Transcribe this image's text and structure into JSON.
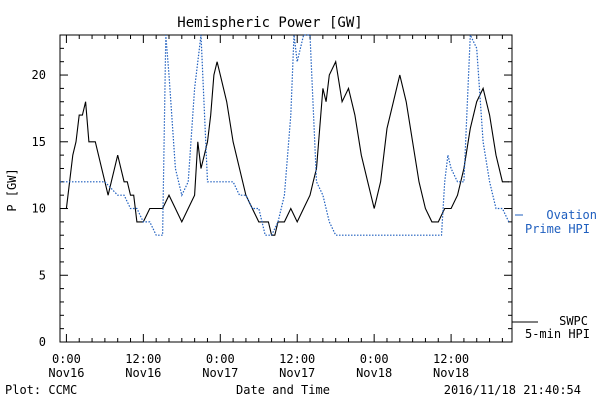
{
  "chart_data": {
    "type": "line",
    "title": "Hemispheric Power [GW]",
    "xlabel": "Date and Time",
    "ylabel": "P [GW]",
    "ylim": [
      0,
      23
    ],
    "yticks": [
      0,
      5,
      10,
      15,
      20
    ],
    "xlim_hours": [
      -1,
      69.5
    ],
    "xtick_labels": [
      {
        "h": 0,
        "time": "0:00",
        "date": "Nov16"
      },
      {
        "h": 12,
        "time": "12:00",
        "date": "Nov16"
      },
      {
        "h": 24,
        "time": "0:00",
        "date": "Nov17"
      },
      {
        "h": 36,
        "time": "12:00",
        "date": "Nov17"
      },
      {
        "h": 48,
        "time": "0:00",
        "date": "Nov18"
      },
      {
        "h": 60,
        "time": "12:00",
        "date": "Nov18"
      }
    ],
    "grid": false,
    "series": [
      {
        "name": "SWPC 5-min HPI",
        "color": "#000000",
        "style": "solid",
        "x": [
          -1,
          0,
          0.5,
          1,
          1.5,
          2,
          2.5,
          3,
          3.5,
          4,
          4.5,
          5,
          5.5,
          6,
          6.5,
          7,
          7.5,
          8,
          8.5,
          9,
          9.5,
          10,
          10.5,
          11,
          12,
          13,
          14,
          15,
          16,
          17,
          18,
          19,
          20,
          20.5,
          21,
          21.5,
          22,
          22.5,
          23,
          23.5,
          24,
          25,
          26,
          27,
          28,
          29,
          30,
          31,
          31.5,
          32,
          32.5,
          33,
          34,
          35,
          36,
          37,
          38,
          38.5,
          39,
          40,
          40.5,
          41,
          42,
          43,
          44,
          45,
          46,
          47,
          48,
          49,
          50,
          51,
          52,
          53,
          54,
          55,
          56,
          57,
          58,
          59,
          60,
          61,
          62,
          63,
          64,
          65,
          66,
          67,
          68,
          69
        ],
        "y": [
          10,
          10,
          12,
          14,
          15,
          17,
          17,
          18,
          15,
          15,
          15,
          14,
          13,
          12,
          11,
          12,
          13,
          14,
          13,
          12,
          12,
          11,
          11,
          9,
          9,
          10,
          10,
          10,
          11,
          10,
          9,
          10,
          11,
          15,
          13,
          14,
          15,
          17,
          20,
          21,
          20,
          18,
          15,
          13,
          11,
          10,
          9,
          9,
          9,
          8,
          8,
          9,
          9,
          10,
          9,
          10,
          11,
          12,
          13,
          19,
          18,
          20,
          21,
          18,
          19,
          17,
          14,
          12,
          10,
          12,
          16,
          18,
          20,
          18,
          15,
          12,
          10,
          9,
          9,
          10,
          10,
          11,
          13,
          16,
          18,
          19,
          17,
          14,
          12,
          12
        ]
      },
      {
        "name": "Ovation Prime HPI",
        "color": "#1f5fbf",
        "style": "dotted",
        "x": [
          -1,
          0,
          2,
          4,
          6,
          8,
          9,
          10,
          11,
          12,
          13,
          14,
          15,
          15.5,
          16,
          17,
          18,
          19,
          20,
          21,
          22,
          23,
          24,
          25,
          26,
          27,
          28,
          29,
          30,
          31,
          32,
          33,
          34,
          35,
          35.5,
          36,
          37,
          38,
          39,
          40,
          41,
          42,
          43,
          44,
          45,
          46,
          47,
          48,
          49,
          50,
          51,
          52,
          53,
          54,
          55,
          56,
          57,
          58,
          58.5,
          59,
          59.5,
          60,
          61,
          62,
          63,
          64,
          65,
          66,
          67,
          68,
          69
        ],
        "y": [
          12,
          12,
          12,
          12,
          12,
          11,
          11,
          10,
          10,
          9,
          9,
          8,
          8,
          23,
          20,
          13,
          11,
          12,
          19,
          23,
          12,
          12,
          12,
          12,
          12,
          11,
          11,
          10,
          10,
          8,
          8,
          9,
          11,
          17,
          23,
          21,
          23,
          23,
          12,
          11,
          9,
          8,
          8,
          8,
          8,
          8,
          8,
          8,
          8,
          8,
          8,
          8,
          8,
          8,
          8,
          8,
          8,
          8,
          8,
          12,
          14,
          13,
          12,
          12,
          23,
          22,
          15,
          12,
          10,
          10,
          9
        ]
      }
    ],
    "legend": [
      {
        "text": "Ovation",
        "color": "#1f5fbf"
      },
      {
        "text": "Prime HPI",
        "color": "#1f5fbf"
      },
      {
        "text": "SWPC",
        "color": "#000000"
      },
      {
        "text": "5-min HPI",
        "color": "#000000"
      }
    ],
    "footer_left": "Plot: CCMC",
    "footer_right": "2016/11/18 21:40:54"
  }
}
